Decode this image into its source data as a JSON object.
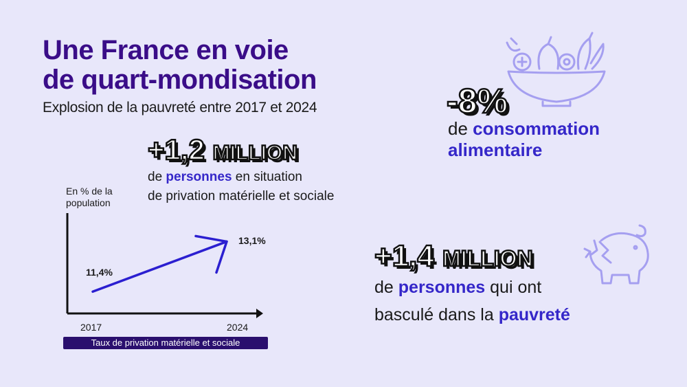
{
  "header": {
    "title_line1": "Une France en voie",
    "title_line2": "de quart-mondisation",
    "subtitle": "Explosion de la pauvreté entre 2017 et 2024"
  },
  "stat_privation": {
    "number": "+1,2",
    "unit": "MILLION",
    "desc_highlight": "personnes",
    "desc_line1_prefix": "de",
    "desc_line1_suffix": "en situation",
    "desc_line2": "de privation matérielle et sociale"
  },
  "stat_food": {
    "number": "-8%",
    "desc_prefix": "de",
    "desc_highlight1": "consommation",
    "desc_highlight2": "alimentaire",
    "icon": "salad-bowl-icon"
  },
  "stat_poverty": {
    "number": "+1,4",
    "unit": "MILLION",
    "desc_prefix": "de",
    "desc_highlight1": "personnes",
    "desc_line1_suffix": "qui ont",
    "desc_line2_prefix": "basculé dans la",
    "desc_highlight2": "pauvreté",
    "icon": "broken-piggy-bank-icon"
  },
  "chart_data": {
    "type": "line",
    "x": [
      "2017",
      "2024"
    ],
    "series": [
      {
        "values": [
          11.4,
          13.1
        ],
        "labels": [
          "11,4%",
          "13,1%"
        ]
      }
    ],
    "ylabel": "En % de la population",
    "xlabel": "",
    "caption": "Taux de privation matérielle et sociale",
    "ylim": [
      10.8,
      13.6
    ],
    "grid": false
  },
  "colors": {
    "background": "#e8e7fa",
    "title": "#3a0d88",
    "highlight": "#3527c9",
    "line": "#2b1fd0",
    "caption_bg": "#2a0f6e",
    "icon": "#a59ff0"
  }
}
